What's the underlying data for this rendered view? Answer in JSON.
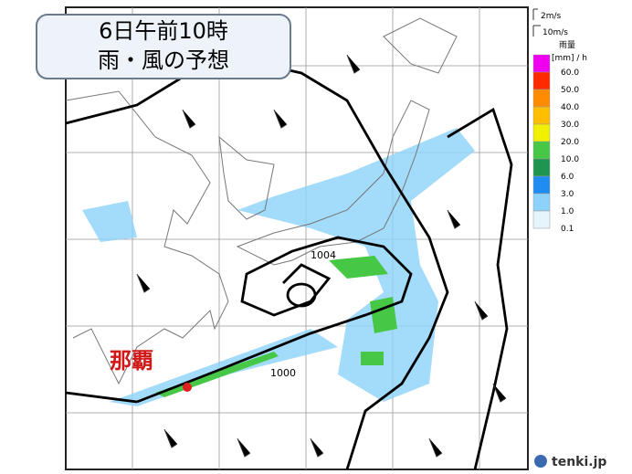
{
  "header": {
    "title_line1": "6日午前10時",
    "title_line2": "雨・風の予想"
  },
  "wind_legend": [
    "2m/s",
    "10m/s"
  ],
  "rain_legend": {
    "title": "雨量",
    "unit": "[mm] / h",
    "items": [
      {
        "label": "60.0",
        "color": "#f000f0"
      },
      {
        "label": "50.0",
        "color": "#ff2a00"
      },
      {
        "label": "40.0",
        "color": "#ff8c00"
      },
      {
        "label": "30.0",
        "color": "#ffbe00"
      },
      {
        "label": "20.0",
        "color": "#f0f000"
      },
      {
        "label": "10.0",
        "color": "#46c846"
      },
      {
        "label": "6.0",
        "color": "#1e9650"
      },
      {
        "label": "3.0",
        "color": "#1e8cf0"
      },
      {
        "label": "1.0",
        "color": "#8cd2fa"
      },
      {
        "label": "0.1",
        "color": "#e6f5fc"
      }
    ]
  },
  "map": {
    "isobar_labels": [
      "1004",
      "1000"
    ],
    "place": "那覇"
  },
  "brand": "tenki.jp"
}
